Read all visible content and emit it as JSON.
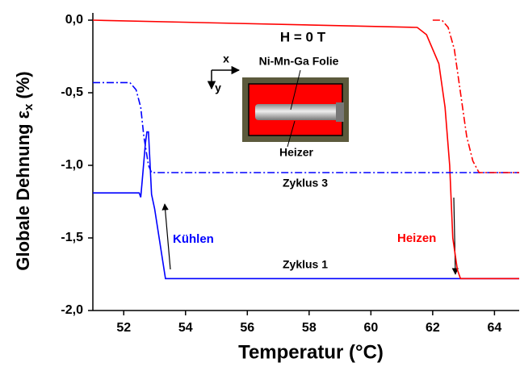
{
  "chart_data": {
    "type": "line",
    "xlabel": "Temperatur (°C)",
    "ylabel": {
      "text": "Globale Dehnung ε",
      "subscript": "x",
      "unit": "(%)"
    },
    "xlim": [
      51,
      64.8
    ],
    "xticks": [
      52,
      54,
      56,
      58,
      60,
      62,
      64
    ],
    "ylim": [
      -2.0,
      0.05
    ],
    "yticks": [
      {
        "value": 0,
        "label": "0,0"
      },
      {
        "value": -0.5,
        "label": "-0,5"
      },
      {
        "value": -1.0,
        "label": "-1,0"
      },
      {
        "value": -1.5,
        "label": "-1,5"
      },
      {
        "value": -2.0,
        "label": "-2,0"
      }
    ],
    "series": [
      {
        "color": "#0000ff",
        "dash": "solid",
        "x": [
          51,
          52.5,
          52.55,
          52.6,
          52.7,
          52.75,
          52.8,
          52.9,
          53.0,
          53.35,
          64.8
        ],
        "values": [
          -1.19,
          -1.19,
          -1.22,
          -1.1,
          -0.85,
          -0.77,
          -0.77,
          -1.2,
          -1.3,
          -1.78,
          -1.78
        ]
      },
      {
        "color": "#ff0000",
        "dash": "solid",
        "x": [
          51,
          61.5,
          61.8,
          62.2,
          62.4,
          62.55,
          62.65,
          62.8,
          62.9,
          64.8
        ],
        "values": [
          0,
          -0.05,
          -0.1,
          -0.3,
          -0.6,
          -1.0,
          -1.5,
          -1.72,
          -1.78,
          -1.78
        ]
      },
      {
        "color": "#0000ff",
        "dash": "dash-dot",
        "x": [
          51,
          52.2,
          52.4,
          52.55,
          52.65,
          52.8,
          52.9,
          64.8
        ],
        "values": [
          -0.43,
          -0.43,
          -0.48,
          -0.6,
          -0.8,
          -1.0,
          -1.05,
          -1.05
        ]
      },
      {
        "color": "#ff0000",
        "dash": "dash-dot",
        "x": [
          62.0,
          62.3,
          62.5,
          62.7,
          62.9,
          63.1,
          63.3,
          63.5,
          64.8
        ],
        "values": [
          0,
          0,
          -0.05,
          -0.2,
          -0.5,
          -0.8,
          -0.97,
          -1.05,
          -1.05
        ]
      }
    ],
    "annotations": [
      "H = 0 T",
      "Ni-Mn-Ga Folie",
      "Heizer",
      "x",
      "y",
      "Zyklus 3",
      "Zyklus 1",
      "Kühlen",
      "Heizen"
    ]
  }
}
